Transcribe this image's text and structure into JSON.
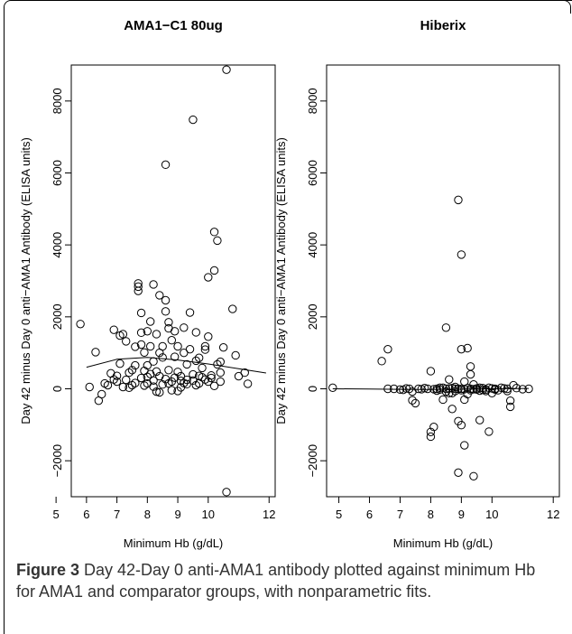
{
  "figure": {
    "caption_label": "Figure 3",
    "caption_text": " Day 42-Day 0 anti-AMA1 antibody plotted against minimum Hb for AMA1 and comparator groups, with nonparametric fits",
    "caption_end": "."
  },
  "chart_data": [
    {
      "type": "scatter",
      "title": "AMA1−C1 80ug",
      "xlabel": "Minimum Hb (g/dL)",
      "ylabel": "Day 42 minus Day 0 anti−AMA1 Antibody (ELISA units)",
      "xlim": [
        5.5,
        12.2
      ],
      "ylim": [
        -3000,
        9000
      ],
      "xticks": [
        5,
        6,
        7,
        8,
        9,
        10,
        12
      ],
      "xtick_labels": [
        "5",
        "6",
        "7",
        "8",
        "9",
        "10",
        "12"
      ],
      "yticks": [
        -2000,
        0,
        2000,
        4000,
        6000,
        8000
      ],
      "ytick_labels": [
        "−2000",
        "0",
        "2000",
        "4000",
        "6000",
        "8000"
      ],
      "points": [
        [
          5.8,
          1800
        ],
        [
          6.1,
          50
        ],
        [
          6.3,
          1020
        ],
        [
          6.4,
          -330
        ],
        [
          6.5,
          -150
        ],
        [
          6.6,
          150
        ],
        [
          6.7,
          100
        ],
        [
          6.8,
          430
        ],
        [
          6.9,
          1640
        ],
        [
          7.0,
          200
        ],
        [
          7.0,
          360
        ],
        [
          7.1,
          1480
        ],
        [
          7.1,
          700
        ],
        [
          7.2,
          1520
        ],
        [
          7.2,
          50
        ],
        [
          7.3,
          1320
        ],
        [
          7.3,
          250
        ],
        [
          7.4,
          450
        ],
        [
          7.5,
          100
        ],
        [
          7.6,
          650
        ],
        [
          7.6,
          1170
        ],
        [
          7.7,
          2840
        ],
        [
          7.7,
          2930
        ],
        [
          7.7,
          2720
        ],
        [
          7.8,
          1560
        ],
        [
          7.8,
          2110
        ],
        [
          7.8,
          1230
        ],
        [
          7.8,
          300
        ],
        [
          7.9,
          500
        ],
        [
          7.9,
          1010
        ],
        [
          8.0,
          1600
        ],
        [
          8.0,
          150
        ],
        [
          8.0,
          650
        ],
        [
          8.1,
          1180
        ],
        [
          8.1,
          1870
        ],
        [
          8.2,
          2900
        ],
        [
          8.2,
          230
        ],
        [
          8.2,
          760
        ],
        [
          8.3,
          1520
        ],
        [
          8.3,
          480
        ],
        [
          8.4,
          1000
        ],
        [
          8.4,
          2600
        ],
        [
          8.4,
          350
        ],
        [
          8.5,
          1180
        ],
        [
          8.5,
          870
        ],
        [
          8.6,
          2460
        ],
        [
          8.6,
          2150
        ],
        [
          8.6,
          6230
        ],
        [
          8.7,
          1680
        ],
        [
          8.7,
          1850
        ],
        [
          8.7,
          520
        ],
        [
          8.8,
          1350
        ],
        [
          8.8,
          200
        ],
        [
          8.9,
          890
        ],
        [
          8.9,
          1600
        ],
        [
          9.0,
          1180
        ],
        [
          9.0,
          470
        ],
        [
          9.1,
          220
        ],
        [
          9.1,
          350
        ],
        [
          9.2,
          1000
        ],
        [
          9.2,
          1700
        ],
        [
          9.3,
          680
        ],
        [
          9.3,
          250
        ],
        [
          9.4,
          2120
        ],
        [
          9.4,
          1100
        ],
        [
          9.5,
          7480
        ],
        [
          9.5,
          400
        ],
        [
          9.6,
          1570
        ],
        [
          9.6,
          780
        ],
        [
          9.7,
          150
        ],
        [
          9.7,
          860
        ],
        [
          9.8,
          580
        ],
        [
          9.9,
          1180
        ],
        [
          9.9,
          1090
        ],
        [
          10.0,
          3100
        ],
        [
          10.0,
          1450
        ],
        [
          10.1,
          370
        ],
        [
          10.2,
          4360
        ],
        [
          10.2,
          3290
        ],
        [
          10.3,
          4120
        ],
        [
          10.3,
          680
        ],
        [
          10.4,
          750
        ],
        [
          10.4,
          200
        ],
        [
          10.5,
          1150
        ],
        [
          10.6,
          8870
        ],
        [
          10.6,
          -2870
        ],
        [
          10.8,
          2220
        ],
        [
          10.9,
          930
        ],
        [
          11.0,
          350
        ],
        [
          11.2,
          450
        ],
        [
          11.3,
          140
        ],
        [
          8.9,
          310
        ],
        [
          9.2,
          160
        ],
        [
          8.5,
          120
        ],
        [
          8.1,
          410
        ],
        [
          9.8,
          320
        ],
        [
          10.0,
          200
        ],
        [
          7.5,
          520
        ],
        [
          8.4,
          -100
        ],
        [
          8.8,
          -40
        ],
        [
          9.1,
          40
        ],
        [
          9.6,
          100
        ],
        [
          10.2,
          80
        ],
        [
          7.9,
          90
        ],
        [
          8.6,
          270
        ],
        [
          9.0,
          -60
        ],
        [
          9.3,
          130
        ],
        [
          8.2,
          60
        ],
        [
          8.7,
          150
        ],
        [
          9.5,
          230
        ],
        [
          10.1,
          300
        ],
        [
          7.4,
          30
        ],
        [
          8.3,
          -80
        ],
        [
          9.7,
          360
        ],
        [
          6.9,
          260
        ],
        [
          7.6,
          160
        ],
        [
          10.4,
          450
        ],
        [
          8.0,
          330
        ],
        [
          9.9,
          260
        ]
      ],
      "fit": [
        [
          6.0,
          600
        ],
        [
          7.0,
          820
        ],
        [
          8.0,
          870
        ],
        [
          9.0,
          800
        ],
        [
          10.0,
          690
        ],
        [
          11.0,
          560
        ],
        [
          11.9,
          440
        ]
      ]
    },
    {
      "type": "scatter",
      "title": "Hiberix",
      "xlabel": "Minimum Hb (g/dL)",
      "ylabel": "Day 42 minus Day 0 anti−AMA1 Antibody (ELISA units)",
      "xlim": [
        4.6,
        12.2
      ],
      "ylim": [
        -3000,
        9000
      ],
      "xticks": [
        5,
        6,
        7,
        8,
        9,
        10,
        12
      ],
      "xtick_labels": [
        "5",
        "6",
        "7",
        "8",
        "9",
        "10",
        "12"
      ],
      "yticks": [
        -2000,
        0,
        2000,
        4000,
        6000,
        8000
      ],
      "ytick_labels": [
        "−2000",
        "0",
        "2000",
        "4000",
        "6000",
        "8000"
      ],
      "points": [
        [
          4.8,
          30
        ],
        [
          6.4,
          770
        ],
        [
          6.6,
          1100
        ],
        [
          6.6,
          0
        ],
        [
          6.8,
          0
        ],
        [
          7.0,
          -20
        ],
        [
          7.2,
          10
        ],
        [
          7.4,
          -80
        ],
        [
          7.4,
          -320
        ],
        [
          7.5,
          -400
        ],
        [
          7.6,
          0
        ],
        [
          7.8,
          20
        ],
        [
          7.9,
          0
        ],
        [
          8.0,
          490
        ],
        [
          8.0,
          -1330
        ],
        [
          8.0,
          -1200
        ],
        [
          8.1,
          -1060
        ],
        [
          8.2,
          0
        ],
        [
          8.3,
          -20
        ],
        [
          8.4,
          30
        ],
        [
          8.4,
          -300
        ],
        [
          8.5,
          1700
        ],
        [
          8.5,
          -80
        ],
        [
          8.6,
          260
        ],
        [
          8.6,
          -120
        ],
        [
          8.7,
          -560
        ],
        [
          8.7,
          -120
        ],
        [
          8.8,
          50
        ],
        [
          8.8,
          -60
        ],
        [
          8.9,
          5250
        ],
        [
          8.9,
          -900
        ],
        [
          8.9,
          -2330
        ],
        [
          9.0,
          3730
        ],
        [
          9.0,
          1100
        ],
        [
          9.0,
          -1010
        ],
        [
          9.0,
          0
        ],
        [
          9.1,
          -1570
        ],
        [
          9.1,
          -300
        ],
        [
          9.1,
          200
        ],
        [
          9.2,
          1130
        ],
        [
          9.2,
          -150
        ],
        [
          9.3,
          620
        ],
        [
          9.3,
          400
        ],
        [
          9.3,
          -40
        ],
        [
          9.4,
          -2430
        ],
        [
          9.4,
          120
        ],
        [
          9.5,
          -20
        ],
        [
          9.6,
          -870
        ],
        [
          9.6,
          -50
        ],
        [
          9.7,
          20
        ],
        [
          9.8,
          -20
        ],
        [
          9.9,
          -1190
        ],
        [
          9.9,
          30
        ],
        [
          10.0,
          -120
        ],
        [
          10.1,
          0
        ],
        [
          10.2,
          -40
        ],
        [
          10.4,
          10
        ],
        [
          10.5,
          -60
        ],
        [
          10.6,
          -330
        ],
        [
          10.6,
          -500
        ],
        [
          10.7,
          100
        ],
        [
          10.8,
          20
        ],
        [
          11.0,
          -10
        ],
        [
          11.2,
          0
        ],
        [
          7.7,
          -10
        ],
        [
          8.2,
          -50
        ],
        [
          8.6,
          10
        ],
        [
          8.9,
          0
        ],
        [
          9.2,
          20
        ],
        [
          9.5,
          10
        ],
        [
          9.8,
          -60
        ],
        [
          10.3,
          30
        ],
        [
          8.1,
          -10
        ],
        [
          8.8,
          0
        ],
        [
          9.4,
          -10
        ],
        [
          10.0,
          10
        ],
        [
          7.3,
          0
        ],
        [
          8.3,
          30
        ],
        [
          9.0,
          -40
        ],
        [
          9.7,
          -30
        ],
        [
          8.5,
          0
        ],
        [
          9.1,
          -10
        ],
        [
          9.6,
          30
        ],
        [
          10.5,
          0
        ],
        [
          7.1,
          -30
        ],
        [
          8.7,
          20
        ],
        [
          9.3,
          0
        ],
        [
          10.1,
          -20
        ]
      ],
      "fit": [
        [
          4.8,
          0
        ],
        [
          6.0,
          -5
        ],
        [
          7.0,
          -15
        ],
        [
          8.0,
          -20
        ],
        [
          9.0,
          -10
        ],
        [
          10.0,
          0
        ],
        [
          11.2,
          10
        ]
      ]
    }
  ]
}
